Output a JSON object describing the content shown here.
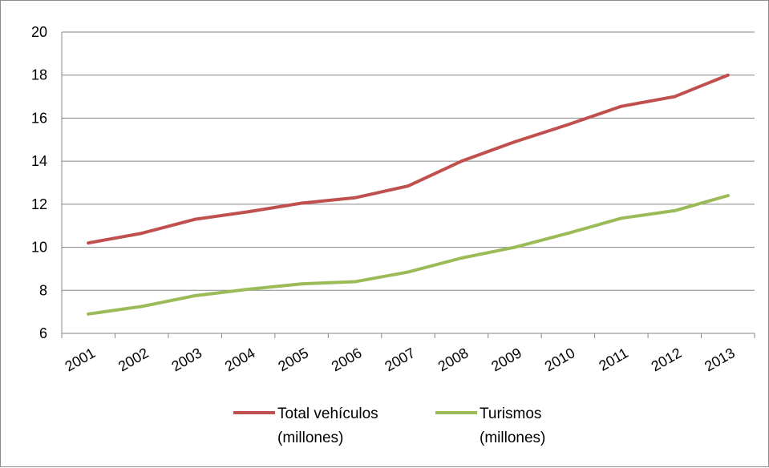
{
  "chart_data": {
    "type": "line",
    "categories": [
      "2001",
      "2002",
      "2003",
      "2004",
      "2005",
      "2006",
      "2007",
      "2008",
      "2009",
      "2010",
      "2011",
      "2012",
      "2013"
    ],
    "series": [
      {
        "name": "Total vehículos (millones)",
        "name_lines": [
          "Total vehículos",
          "(millones)"
        ],
        "color": "#c0504d",
        "values": [
          10.2,
          10.65,
          11.3,
          11.65,
          12.05,
          12.3,
          12.85,
          14.0,
          14.9,
          15.7,
          16.55,
          17.0,
          18.0
        ]
      },
      {
        "name": "Turismos (millones)",
        "name_lines": [
          "Turismos",
          "(millones)"
        ],
        "color": "#9bbb59",
        "values": [
          6.9,
          7.25,
          7.75,
          8.05,
          8.3,
          8.4,
          8.85,
          9.5,
          10.0,
          10.65,
          11.35,
          11.7,
          12.4
        ]
      }
    ],
    "ylim": [
      6,
      20
    ],
    "yticks": [
      "6",
      "8",
      "10",
      "12",
      "14",
      "16",
      "18",
      "20"
    ],
    "grid": true,
    "legend": "bottom"
  }
}
